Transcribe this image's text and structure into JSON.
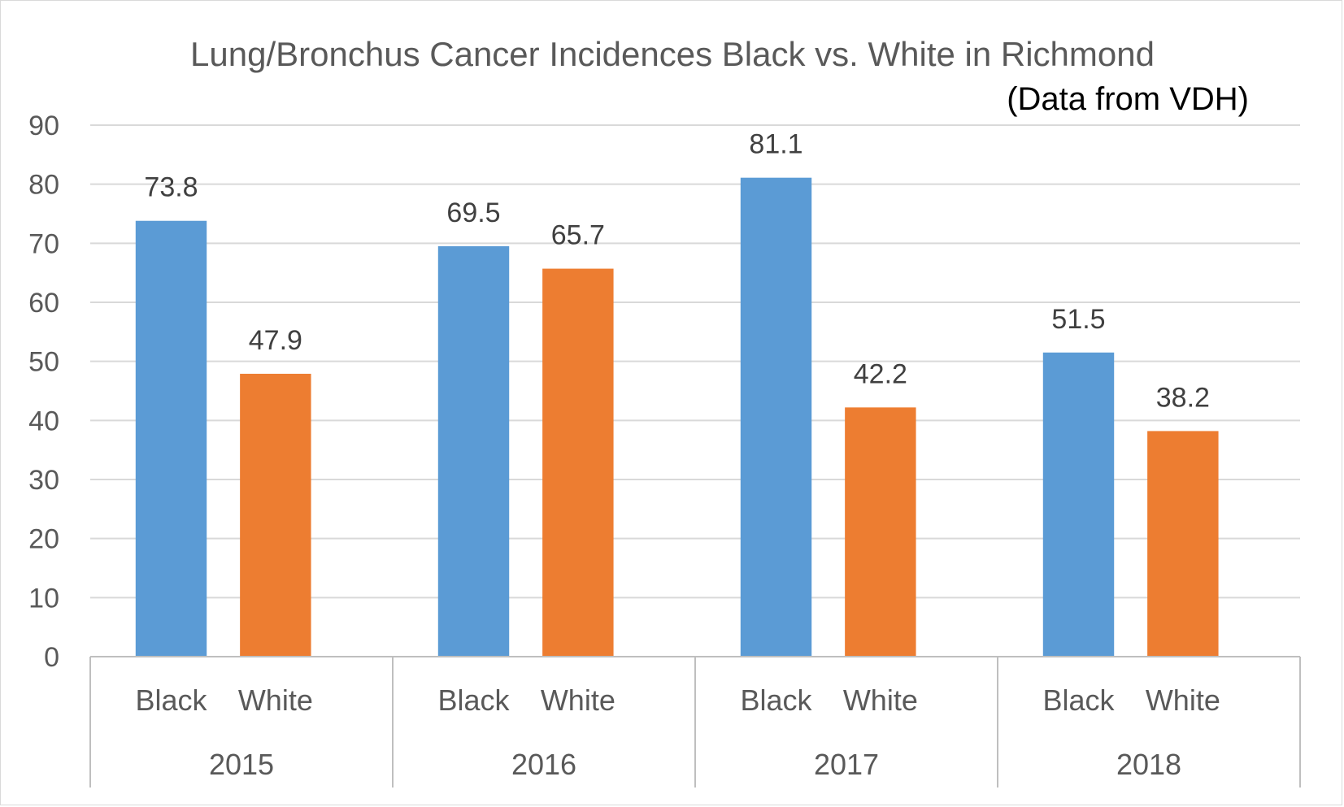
{
  "chart_data": {
    "type": "bar",
    "title": "Lung/Bronchus Cancer Incidences Black vs. White in Richmond",
    "subtitle": "(Data from VDH)",
    "xlabel": "",
    "ylabel": "",
    "ylim": [
      0,
      90
    ],
    "yticks": [
      "0",
      "10",
      "20",
      "30",
      "40",
      "50",
      "60",
      "70",
      "80",
      "90"
    ],
    "grid": true,
    "legend": "none",
    "groups": [
      "2015",
      "2016",
      "2017",
      "2018"
    ],
    "subcategories": [
      "Black",
      "White"
    ],
    "series": [
      {
        "name": "Black",
        "color": "#5B9BD5",
        "values": [
          73.8,
          69.5,
          81.1,
          51.5
        ],
        "labels": [
          "73.8",
          "69.5",
          "81.1",
          "51.5"
        ]
      },
      {
        "name": "White",
        "color": "#ED7D31",
        "values": [
          47.9,
          65.7,
          42.2,
          38.2
        ],
        "labels": [
          "47.9",
          "65.7",
          "42.2",
          "38.2"
        ]
      }
    ]
  }
}
